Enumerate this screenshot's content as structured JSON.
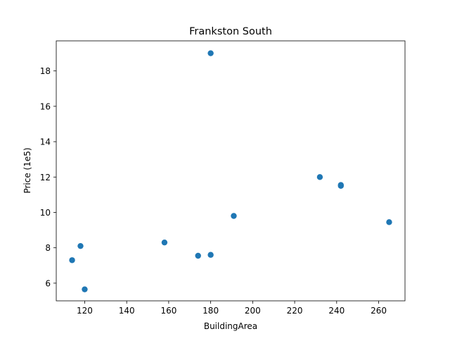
{
  "chart_data": {
    "type": "scatter",
    "title": "Frankston South",
    "xlabel": "BuildingArea",
    "ylabel": "Price (1e5)",
    "xlim": [
      106.45,
      272.55
    ],
    "ylim": [
      5.0,
      19.7
    ],
    "xticks": [
      120,
      140,
      160,
      180,
      200,
      220,
      240,
      260
    ],
    "yticks": [
      6,
      8,
      10,
      12,
      14,
      16,
      18
    ],
    "grid": false,
    "marker_color": "#1f77b4",
    "points": [
      {
        "x": 180,
        "y": 19.0
      },
      {
        "x": 232,
        "y": 12.0
      },
      {
        "x": 242,
        "y": 11.55
      },
      {
        "x": 242,
        "y": 11.5
      },
      {
        "x": 191,
        "y": 9.8
      },
      {
        "x": 265,
        "y": 9.45
      },
      {
        "x": 158,
        "y": 8.3
      },
      {
        "x": 118,
        "y": 8.1
      },
      {
        "x": 174,
        "y": 7.55
      },
      {
        "x": 180,
        "y": 7.6
      },
      {
        "x": 114,
        "y": 7.3
      },
      {
        "x": 120,
        "y": 5.65
      }
    ]
  }
}
